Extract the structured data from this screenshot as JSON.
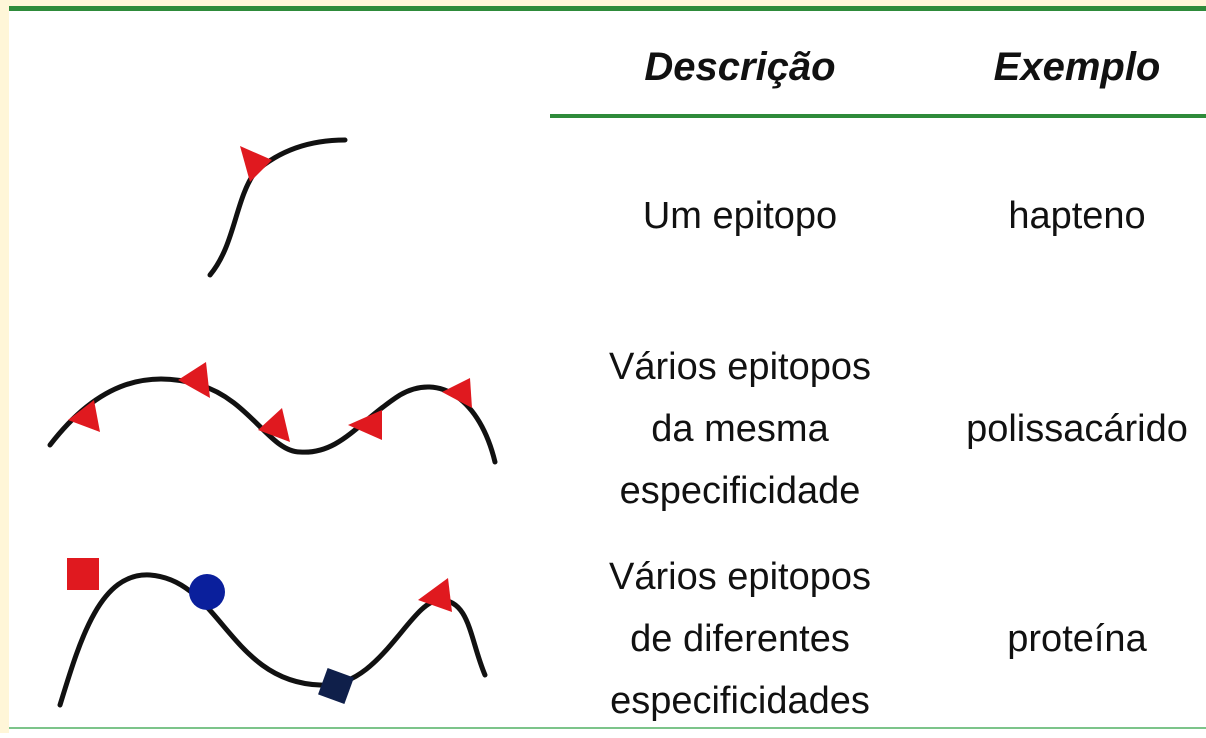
{
  "table": {
    "columns": [
      "Descrição",
      "Exemplo"
    ],
    "rows": [
      {
        "description": [
          "Um epitopo"
        ],
        "example": "hapteno"
      },
      {
        "description": [
          "Vários epitopos",
          "da mesma",
          "especificidade"
        ],
        "example": "polissacárido"
      },
      {
        "description": [
          "Vários epitopos",
          "de diferentes",
          "especificidades"
        ],
        "example": "proteína"
      }
    ]
  }
}
